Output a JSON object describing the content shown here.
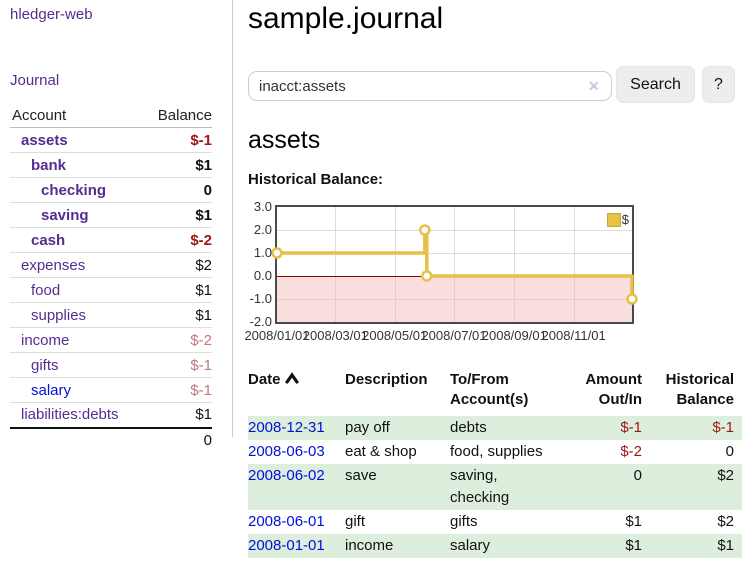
{
  "app": {
    "brand": "hledger-web",
    "nav": {
      "journal": "Journal"
    }
  },
  "sidebar": {
    "headers": {
      "account": "Account",
      "balance": "Balance"
    },
    "rows": [
      {
        "name": "assets",
        "depth": 1,
        "bold": true,
        "link": "purple",
        "balance": "$-1",
        "bal": "negstrong"
      },
      {
        "name": "bank",
        "depth": 2,
        "bold": true,
        "link": "purple",
        "balance": "$1",
        "bal": "strong"
      },
      {
        "name": "checking",
        "depth": 3,
        "bold": true,
        "link": "purple",
        "balance": "0",
        "bal": "strong"
      },
      {
        "name": "saving",
        "depth": 3,
        "bold": true,
        "link": "purple",
        "balance": "$1",
        "bal": "strong"
      },
      {
        "name": "cash",
        "depth": 2,
        "bold": true,
        "link": "purple",
        "balance": "$-2",
        "bal": "negstrong"
      },
      {
        "name": "expenses",
        "depth": 1,
        "bold": false,
        "link": "purple",
        "balance": "$2",
        "bal": "plain"
      },
      {
        "name": "food",
        "depth": 2,
        "bold": false,
        "link": "purple",
        "balance": "$1",
        "bal": "plain"
      },
      {
        "name": "supplies",
        "depth": 2,
        "bold": false,
        "link": "purple",
        "balance": "$1",
        "bal": "plain"
      },
      {
        "name": "income",
        "depth": 1,
        "bold": false,
        "link": "purple",
        "balance": "$-2",
        "bal": "negfaded"
      },
      {
        "name": "gifts",
        "depth": 2,
        "bold": false,
        "link": "purple",
        "balance": "$-1",
        "bal": "negfaded"
      },
      {
        "name": "salary",
        "depth": 2,
        "bold": false,
        "link": "blue",
        "balance": "$-1",
        "bal": "negfaded"
      },
      {
        "name": "liabilities:debts",
        "depth": 1,
        "bold": false,
        "link": "purple",
        "balance": "$1",
        "bal": "plain"
      }
    ],
    "total": "0"
  },
  "main": {
    "title": "sample.journal",
    "search": {
      "value": "inacct:assets",
      "clear_icon": "✕",
      "search_button": "Search",
      "help_button": "?"
    },
    "account_heading": "assets",
    "chart_label": "Historical Balance:"
  },
  "chart_data": {
    "type": "line",
    "title": "Historical Balance",
    "step": true,
    "series": [
      {
        "name": "$",
        "color": "#e7c04a",
        "points": [
          [
            "2008-01-01",
            1
          ],
          [
            "2008-06-01",
            2
          ],
          [
            "2008-06-03",
            0
          ],
          [
            "2008-12-31",
            -1
          ]
        ]
      }
    ],
    "ylim": [
      -2,
      3
    ],
    "yticks": [
      3.0,
      2.0,
      1.0,
      0.0,
      -1.0,
      -2.0
    ],
    "xticks": [
      "2008/01/01",
      "2008/03/01",
      "2008/05/01",
      "2008/07/01",
      "2008/09/01",
      "2008/11/01"
    ],
    "x_range_days": [
      "2008-01-01",
      "2008-12-31"
    ],
    "grid": true,
    "negative_region_color": "rgba(244,185,185,0.45)",
    "zero_line_color": "#8b0000",
    "legend": {
      "label": "$",
      "position": "top-right",
      "swatch_color": "#e8c33f"
    }
  },
  "register": {
    "headers": {
      "date": "Date",
      "description": "Description",
      "tofrom1": "To/From",
      "tofrom2": "Account(s)",
      "amount1": "Amount",
      "amount2": "Out/In",
      "hist1": "Historical",
      "hist2": "Balance"
    },
    "rows": [
      {
        "date": "2008-12-31",
        "description": "pay off",
        "accounts": "debts",
        "amount": "$-1",
        "balance": "$-1"
      },
      {
        "date": "2008-06-03",
        "description": "eat & shop",
        "accounts": "food, supplies",
        "amount": "$-2",
        "balance": "0"
      },
      {
        "date": "2008-06-02",
        "description": "save",
        "accounts": "saving, checking",
        "amount": "0",
        "balance": "$2"
      },
      {
        "date": "2008-06-01",
        "description": "gift",
        "accounts": "gifts",
        "amount": "$1",
        "balance": "$2"
      },
      {
        "date": "2008-01-01",
        "description": "income",
        "accounts": "salary",
        "amount": "$1",
        "balance": "$1"
      }
    ]
  }
}
